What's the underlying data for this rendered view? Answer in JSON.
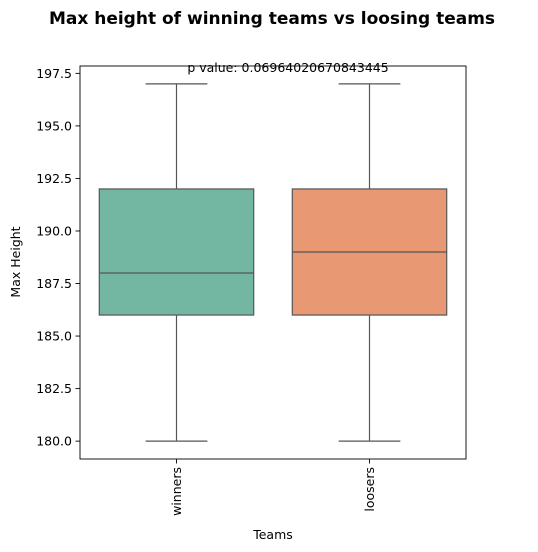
{
  "chart_data": {
    "type": "box",
    "title": "Max height of winning teams vs loosing teams",
    "subtitle": "p value: 0.06964020670843445",
    "xlabel": "Teams",
    "ylabel": "Max Height",
    "ylim": [
      179.15,
      197.85
    ],
    "yticks": [
      180.0,
      182.5,
      185.0,
      187.5,
      190.0,
      192.5,
      195.0,
      197.5
    ],
    "ytick_labels": [
      "180.0",
      "182.5",
      "185.0",
      "187.5",
      "190.0",
      "192.5",
      "195.0",
      "197.5"
    ],
    "categories": [
      "winners",
      "loosers"
    ],
    "boxes": [
      {
        "category": "winners",
        "whisker_low": 180,
        "q1": 186,
        "median": 188,
        "q3": 192,
        "whisker_high": 197,
        "color": "#73b7a2"
      },
      {
        "category": "loosers",
        "whisker_low": 180,
        "q1": 186,
        "median": 189,
        "q3": 192,
        "whisker_high": 197,
        "color": "#e99874"
      }
    ],
    "line_color": "#555555",
    "grid": false,
    "legend": "none"
  }
}
